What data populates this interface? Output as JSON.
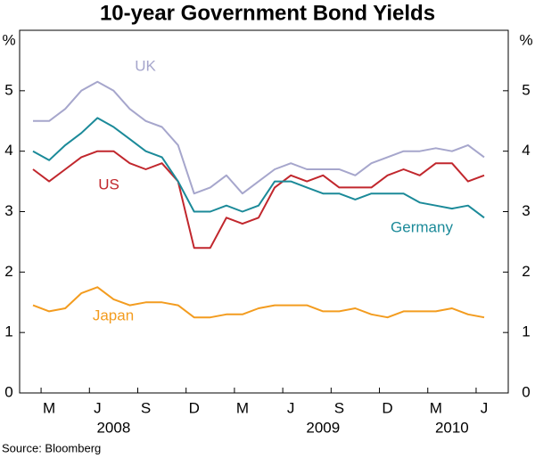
{
  "chart_data": {
    "type": "line",
    "title": "10-year Government Bond Yields",
    "y_unit_left": "%",
    "y_unit_right": "%",
    "source": "Source: Bloomberg",
    "x": [
      "2008-02",
      "2008-03",
      "2008-04",
      "2008-05",
      "2008-06",
      "2008-07",
      "2008-08",
      "2008-09",
      "2008-10",
      "2008-11",
      "2008-12",
      "2009-01",
      "2009-02",
      "2009-03",
      "2009-04",
      "2009-05",
      "2009-06",
      "2009-07",
      "2009-08",
      "2009-09",
      "2009-10",
      "2009-11",
      "2009-12",
      "2010-01",
      "2010-02",
      "2010-03",
      "2010-04",
      "2010-05",
      "2010-06"
    ],
    "xticks": [
      {
        "value": "2008-03",
        "label": "M"
      },
      {
        "value": "2008-06",
        "label": "J"
      },
      {
        "value": "2008-09",
        "label": "S"
      },
      {
        "value": "2008-12",
        "label": "D"
      },
      {
        "value": "2009-03",
        "label": "M"
      },
      {
        "value": "2009-06",
        "label": "J"
      },
      {
        "value": "2009-09",
        "label": "S"
      },
      {
        "value": "2009-12",
        "label": "D"
      },
      {
        "value": "2010-03",
        "label": "M"
      },
      {
        "value": "2010-06",
        "label": "J"
      }
    ],
    "year_labels": [
      {
        "value": "2008-07",
        "label": "2008"
      },
      {
        "value": "2009-08",
        "label": "2009"
      },
      {
        "value": "2010-04",
        "label": "2010"
      }
    ],
    "ylim": [
      0,
      6
    ],
    "yticks": [
      0,
      1,
      2,
      3,
      4,
      5
    ],
    "grid": false,
    "series": [
      {
        "name": "UK",
        "color": "#a6a6cc",
        "values": [
          4.5,
          4.5,
          4.7,
          5.0,
          5.15,
          5.0,
          4.7,
          4.5,
          4.4,
          4.1,
          3.3,
          3.4,
          3.6,
          3.3,
          3.5,
          3.7,
          3.8,
          3.7,
          3.7,
          3.7,
          3.6,
          3.8,
          3.9,
          4.0,
          4.0,
          4.05,
          4.0,
          4.1,
          3.9
        ]
      },
      {
        "name": "US",
        "color": "#c1272d",
        "values": [
          3.7,
          3.5,
          3.7,
          3.9,
          4.0,
          4.0,
          3.8,
          3.7,
          3.8,
          3.5,
          2.4,
          2.4,
          2.9,
          2.8,
          2.9,
          3.4,
          3.6,
          3.5,
          3.6,
          3.4,
          3.4,
          3.4,
          3.6,
          3.7,
          3.6,
          3.8,
          3.8,
          3.5,
          3.6
        ]
      },
      {
        "name": "Germany",
        "color": "#1b8a99",
        "values": [
          4.0,
          3.85,
          4.1,
          4.3,
          4.55,
          4.4,
          4.2,
          4.0,
          3.9,
          3.5,
          3.0,
          3.0,
          3.1,
          3.0,
          3.1,
          3.5,
          3.5,
          3.4,
          3.3,
          3.3,
          3.2,
          3.3,
          3.3,
          3.3,
          3.15,
          3.1,
          3.05,
          3.1,
          2.9
        ]
      },
      {
        "name": "Japan",
        "color": "#f39c1f",
        "values": [
          1.45,
          1.35,
          1.4,
          1.65,
          1.75,
          1.55,
          1.45,
          1.5,
          1.5,
          1.45,
          1.25,
          1.25,
          1.3,
          1.3,
          1.4,
          1.45,
          1.45,
          1.45,
          1.35,
          1.35,
          1.4,
          1.3,
          1.25,
          1.35,
          1.35,
          1.35,
          1.4,
          1.3,
          1.25
        ]
      }
    ]
  }
}
